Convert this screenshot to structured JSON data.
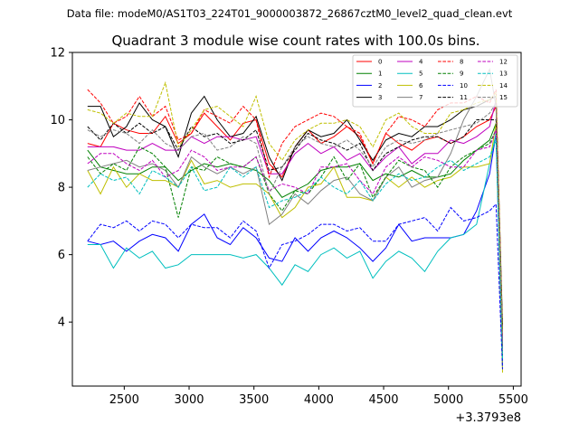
{
  "figure": {
    "suptitle": "Data file: modeM0/AS1T03_224T01_9000003872_26867cztM0_level2_quad_clean.evt"
  },
  "chart_data": {
    "type": "line",
    "title": "Quadrant 3 module wise count rates with 100.0s bins.",
    "xlabel": "",
    "ylabel": "",
    "x_offset_label": "+3.3793e8",
    "xlim": [
      2100,
      5560
    ],
    "ylim": [
      2.1,
      12
    ],
    "xticks": [
      2500,
      3000,
      3500,
      4000,
      4500,
      5000,
      5500
    ],
    "yticks": [
      4,
      6,
      8,
      10,
      12
    ],
    "grid": false,
    "legend_position": "top-right",
    "x": [
      2217,
      2317,
      2417,
      2517,
      2617,
      2717,
      2817,
      2917,
      3017,
      3117,
      3217,
      3317,
      3417,
      3517,
      3617,
      3717,
      3817,
      3917,
      4017,
      4117,
      4217,
      4317,
      4417,
      4517,
      4617,
      4717,
      4817,
      4917,
      5017,
      5117,
      5217,
      5317,
      5367,
      5417
    ],
    "series": [
      {
        "name": "0",
        "color": "#ff0000",
        "dash": "solid",
        "values": [
          9.3,
          9.2,
          9.9,
          9.7,
          9.6,
          9.6,
          10.1,
          9.3,
          9.6,
          10.2,
          9.8,
          9.4,
          9.9,
          10.0,
          8.7,
          8.3,
          9.2,
          9.7,
          9.3,
          9.5,
          9.8,
          9.5,
          8.7,
          9.6,
          9.3,
          9.1,
          9.4,
          9.5,
          9.3,
          9.5,
          9.8,
          10.0,
          10.4,
          3.3
        ]
      },
      {
        "name": "1",
        "color": "#008000",
        "dash": "solid",
        "values": [
          9.1,
          8.6,
          8.5,
          8.4,
          8.4,
          8.6,
          8.6,
          8.2,
          8.5,
          8.7,
          8.6,
          8.7,
          8.6,
          8.5,
          8.2,
          7.7,
          7.9,
          8.1,
          8.5,
          8.6,
          8.6,
          8.7,
          8.2,
          8.4,
          8.3,
          8.5,
          8.3,
          8.3,
          8.4,
          8.8,
          9.1,
          9.4,
          9.9,
          2.8
        ]
      },
      {
        "name": "2",
        "color": "#0000ff",
        "dash": "solid",
        "values": [
          6.4,
          6.3,
          6.4,
          6.1,
          6.4,
          6.6,
          6.5,
          6.1,
          6.9,
          7.2,
          6.5,
          6.3,
          6.8,
          6.5,
          5.9,
          5.8,
          6.5,
          6.1,
          6.5,
          6.7,
          6.5,
          6.2,
          5.8,
          6.2,
          6.9,
          6.4,
          6.5,
          6.5,
          6.5,
          6.6,
          7.3,
          8.4,
          9.6,
          2.7
        ]
      },
      {
        "name": "3",
        "color": "#000000",
        "dash": "solid",
        "values": [
          10.4,
          10.4,
          9.5,
          9.8,
          10.5,
          10.0,
          9.8,
          8.9,
          10.2,
          10.7,
          10.0,
          9.5,
          9.6,
          10.1,
          8.9,
          8.2,
          9.2,
          9.7,
          9.5,
          9.6,
          10.0,
          9.4,
          8.8,
          9.4,
          9.6,
          9.5,
          9.8,
          9.8,
          10.0,
          10.3,
          10.4,
          10.6,
          10.7,
          3.9
        ]
      },
      {
        "name": "4",
        "color": "#bf00bf",
        "dash": "solid",
        "values": [
          9.2,
          9.2,
          9.2,
          9.1,
          9.1,
          9.3,
          9.1,
          9.1,
          9.5,
          9.3,
          9.5,
          9.5,
          9.4,
          9.5,
          8.4,
          8.4,
          9.0,
          9.3,
          9.0,
          9.2,
          8.8,
          9.0,
          8.5,
          8.9,
          9.2,
          8.7,
          9.0,
          9.0,
          9.4,
          9.3,
          9.5,
          9.8,
          10.6,
          3.4
        ]
      },
      {
        "name": "5",
        "color": "#00bfbf",
        "dash": "solid",
        "values": [
          6.3,
          6.3,
          5.6,
          6.2,
          5.9,
          6.1,
          5.6,
          5.7,
          6.0,
          6.0,
          6.0,
          6.0,
          5.9,
          6.0,
          5.6,
          5.1,
          5.7,
          5.5,
          6.0,
          6.2,
          5.9,
          6.1,
          5.3,
          5.8,
          6.1,
          5.9,
          5.5,
          6.1,
          6.5,
          6.6,
          6.9,
          8.7,
          9.6,
          2.6
        ]
      },
      {
        "name": "6",
        "color": "#bfbf00",
        "dash": "solid",
        "values": [
          8.5,
          7.8,
          8.6,
          8.0,
          8.4,
          8.2,
          8.2,
          8.0,
          8.8,
          8.1,
          8.2,
          8.0,
          8.1,
          8.1,
          7.8,
          7.1,
          7.4,
          8.0,
          8.1,
          8.6,
          7.7,
          7.7,
          7.6,
          8.3,
          8.0,
          8.3,
          8.0,
          8.2,
          8.3,
          8.6,
          8.6,
          8.7,
          9.9,
          2.5
        ]
      },
      {
        "name": "7",
        "color": "#808080",
        "dash": "solid",
        "values": [
          8.5,
          8.6,
          8.7,
          8.8,
          8.6,
          8.7,
          8.5,
          8.0,
          8.9,
          8.6,
          8.4,
          8.6,
          8.4,
          8.6,
          6.9,
          7.2,
          7.8,
          7.5,
          7.9,
          8.2,
          8.3,
          7.8,
          7.6,
          8.3,
          8.6,
          8.0,
          8.2,
          8.3,
          9.0,
          10.0,
          10.7,
          11.5,
          10.4,
          3.2
        ]
      },
      {
        "name": "8",
        "color": "#ff0000",
        "dash": "dashed",
        "values": [
          10.9,
          10.5,
          9.9,
          10.1,
          10.7,
          10.1,
          10.4,
          9.4,
          9.6,
          10.3,
          10.1,
          9.9,
          10.4,
          10.0,
          8.3,
          9.3,
          9.8,
          10.0,
          10.2,
          10.1,
          9.8,
          9.6,
          8.7,
          9.6,
          10.1,
          10.0,
          9.8,
          10.3,
          10.5,
          10.5,
          10.7,
          10.5,
          10.9,
          3.6
        ]
      },
      {
        "name": "9",
        "color": "#008000",
        "dash": "dashed",
        "values": [
          8.9,
          8.4,
          8.7,
          8.5,
          9.2,
          9.0,
          8.6,
          7.1,
          8.6,
          8.5,
          8.9,
          8.7,
          8.6,
          8.9,
          7.8,
          7.3,
          7.9,
          7.8,
          8.3,
          8.9,
          8.2,
          8.7,
          7.7,
          8.3,
          8.8,
          8.6,
          8.5,
          8.0,
          8.6,
          8.9,
          9.1,
          9.3,
          9.7,
          3.0
        ]
      },
      {
        "name": "10",
        "color": "#0000ff",
        "dash": "dashed",
        "values": [
          6.4,
          6.9,
          6.8,
          7.0,
          6.7,
          7.0,
          6.9,
          6.5,
          6.9,
          6.8,
          6.8,
          6.5,
          7.0,
          6.7,
          5.6,
          6.3,
          6.4,
          6.6,
          6.9,
          6.9,
          6.7,
          6.8,
          6.4,
          6.4,
          6.9,
          7.0,
          7.1,
          6.7,
          7.4,
          7.0,
          7.1,
          7.3,
          7.5,
          2.6
        ]
      },
      {
        "name": "11",
        "color": "#000000",
        "dash": "dashed",
        "values": [
          9.8,
          9.4,
          9.9,
          9.6,
          9.9,
          9.6,
          9.8,
          9.1,
          9.8,
          9.5,
          9.6,
          9.3,
          9.4,
          9.7,
          8.5,
          8.6,
          9.1,
          9.6,
          9.4,
          9.3,
          9.1,
          9.3,
          8.5,
          9.0,
          9.2,
          9.4,
          9.5,
          9.5,
          9.3,
          9.5,
          10.0,
          10.0,
          10.0,
          3.8
        ]
      },
      {
        "name": "12",
        "color": "#bf00bf",
        "dash": "dashed",
        "values": [
          8.7,
          9.0,
          9.0,
          8.7,
          8.5,
          8.8,
          8.3,
          8.5,
          9.1,
          8.9,
          8.5,
          8.6,
          8.6,
          8.9,
          7.9,
          8.1,
          8.0,
          7.8,
          8.6,
          8.6,
          8.7,
          8.2,
          7.8,
          8.6,
          8.9,
          8.6,
          8.9,
          8.8,
          8.6,
          8.6,
          9.1,
          9.2,
          9.7,
          3.1
        ]
      },
      {
        "name": "13",
        "color": "#00bfbf",
        "dash": "dashed",
        "values": [
          8.0,
          8.4,
          8.2,
          8.3,
          7.8,
          8.5,
          8.3,
          8.0,
          8.6,
          7.9,
          8.0,
          8.6,
          8.3,
          8.6,
          7.4,
          7.6,
          7.7,
          7.9,
          8.3,
          8.0,
          7.8,
          8.2,
          7.6,
          8.1,
          8.4,
          8.2,
          8.3,
          8.6,
          8.8,
          8.5,
          8.7,
          8.9,
          9.4,
          2.9
        ]
      },
      {
        "name": "14",
        "color": "#bfbf00",
        "dash": "dashed",
        "values": [
          10.3,
          10.2,
          9.9,
          10.2,
          10.1,
          10.1,
          11.1,
          9.2,
          9.7,
          10.3,
          10.4,
          10.1,
          9.8,
          10.7,
          9.3,
          8.8,
          9.4,
          9.7,
          9.9,
          9.9,
          10.0,
          9.8,
          9.2,
          10.0,
          10.2,
          9.8,
          9.6,
          9.6,
          10.2,
          10.3,
          10.5,
          10.6,
          10.8,
          3.7
        ]
      },
      {
        "name": "15",
        "color": "#808080",
        "dash": "dashed",
        "values": [
          9.7,
          9.5,
          9.7,
          9.6,
          9.3,
          9.7,
          9.3,
          9.1,
          9.5,
          9.6,
          9.1,
          9.2,
          9.5,
          9.3,
          7.8,
          8.6,
          9.2,
          9.5,
          9.3,
          9.2,
          9.4,
          9.1,
          8.6,
          9.2,
          9.4,
          9.3,
          9.4,
          9.6,
          9.7,
          9.8,
          9.9,
          10.2,
          10.5,
          3.4
        ]
      }
    ]
  }
}
